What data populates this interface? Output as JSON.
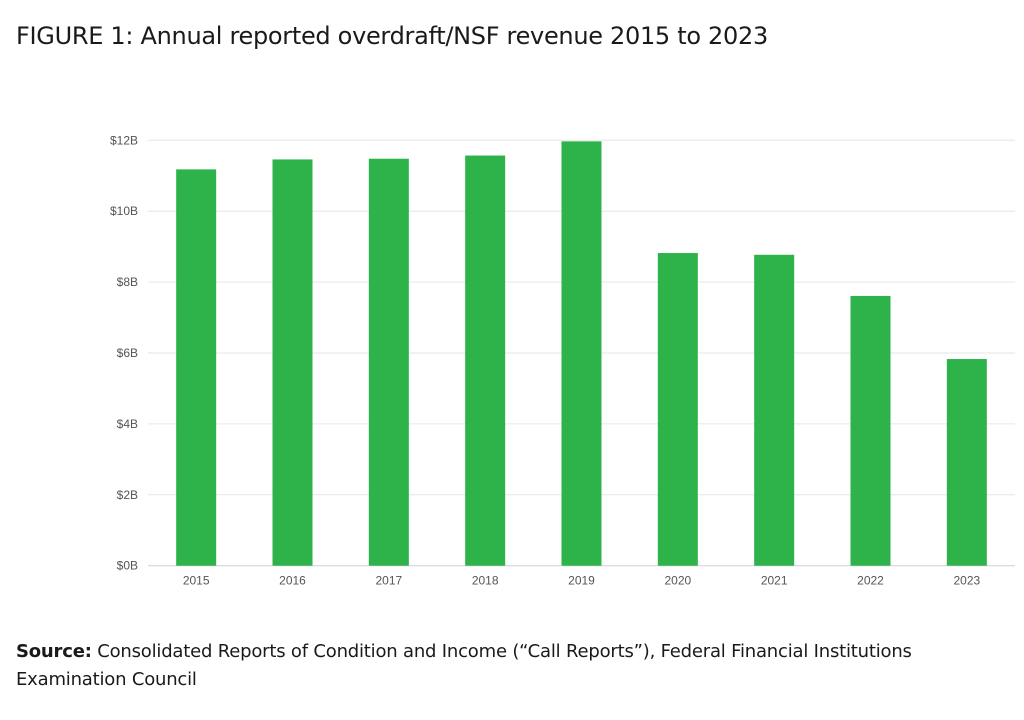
{
  "title": "FIGURE 1: Annual reported overdraft/NSF revenue 2015 to 2023",
  "source": {
    "label": "Source:",
    "text": " Consolidated Reports of Condition and Income (“Call Reports”), Federal Financial Institutions Examination Council"
  },
  "chart_data": {
    "type": "bar",
    "title": "FIGURE 1: Annual reported overdraft/NSF revenue 2015 to 2023",
    "categories": [
      "2015",
      "2016",
      "2017",
      "2018",
      "2019",
      "2020",
      "2021",
      "2022",
      "2023"
    ],
    "values": [
      11.18,
      11.46,
      11.48,
      11.57,
      11.97,
      8.82,
      8.77,
      7.61,
      5.83
    ],
    "unit": "billions USD",
    "ylim": [
      0,
      12
    ],
    "yticks": [
      0,
      2,
      4,
      6,
      8,
      10,
      12
    ],
    "ytick_labels": [
      "$0B",
      "$2B",
      "$4B",
      "$6B",
      "$8B",
      "$10B",
      "$12B"
    ],
    "xlabel": "",
    "ylabel": "",
    "grid": true,
    "bar_color": "#2db34a",
    "grid_color": "#e6e6e6"
  }
}
